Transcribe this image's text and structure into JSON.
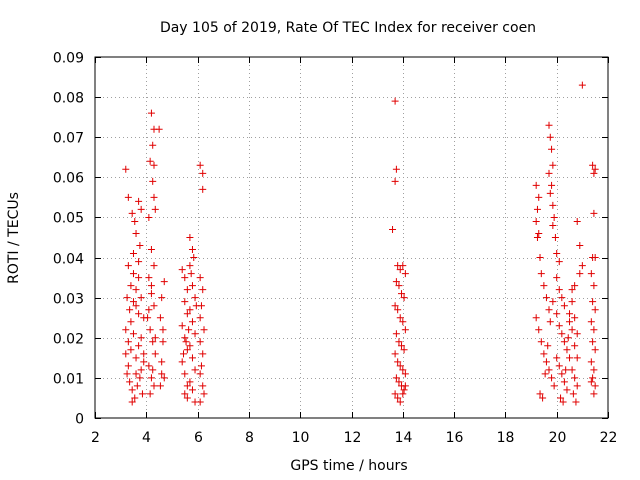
{
  "chart_data": {
    "type": "scatter",
    "title": "Day 105 of 2019, Rate Of TEC Index for receiver coen",
    "xlabel": "GPS time / hours",
    "ylabel": "ROTI / TECUs",
    "xlim": [
      2,
      22
    ],
    "ylim": [
      0,
      0.09
    ],
    "x_ticks": [
      2,
      4,
      6,
      8,
      10,
      12,
      14,
      16,
      18,
      20,
      22
    ],
    "x_tick_labels": [
      "2",
      "4",
      "6",
      "8",
      "10",
      "12",
      "14",
      "16",
      "18",
      "20",
      "22"
    ],
    "y_ticks": [
      0,
      0.01,
      0.02,
      0.03,
      0.04,
      0.05,
      0.06,
      0.07,
      0.08,
      0.09
    ],
    "y_tick_labels": [
      "0",
      "0.01",
      "0.02",
      "0.03",
      "0.04",
      "0.05",
      "0.06",
      "0.07",
      "0.08",
      "0.09"
    ],
    "grid": true,
    "marker": "+",
    "color": "#e00000",
    "series": [
      {
        "name": "ROTI",
        "points": [
          [
            3.2,
            0.062
          ],
          [
            3.3,
            0.055
          ],
          [
            3.45,
            0.051
          ],
          [
            3.55,
            0.049
          ],
          [
            3.6,
            0.046
          ],
          [
            3.7,
            0.054
          ],
          [
            3.8,
            0.052
          ],
          [
            3.75,
            0.043
          ],
          [
            3.5,
            0.041
          ],
          [
            3.3,
            0.038
          ],
          [
            3.25,
            0.03
          ],
          [
            3.35,
            0.027
          ],
          [
            3.4,
            0.033
          ],
          [
            3.5,
            0.036
          ],
          [
            3.6,
            0.028
          ],
          [
            3.7,
            0.035
          ],
          [
            3.8,
            0.03
          ],
          [
            3.9,
            0.025
          ],
          [
            3.2,
            0.022
          ],
          [
            3.3,
            0.019
          ],
          [
            3.4,
            0.017
          ],
          [
            3.5,
            0.021
          ],
          [
            3.6,
            0.015
          ],
          [
            3.7,
            0.018
          ],
          [
            3.8,
            0.012
          ],
          [
            3.9,
            0.016
          ],
          [
            3.25,
            0.011
          ],
          [
            3.35,
            0.009
          ],
          [
            3.45,
            0.007
          ],
          [
            3.55,
            0.005
          ],
          [
            3.65,
            0.008
          ],
          [
            3.75,
            0.01
          ],
          [
            3.85,
            0.006
          ],
          [
            3.3,
            0.013
          ],
          [
            3.4,
            0.024
          ],
          [
            3.5,
            0.029
          ],
          [
            3.6,
            0.032
          ],
          [
            3.7,
            0.026
          ],
          [
            3.8,
            0.02
          ],
          [
            3.9,
            0.014
          ],
          [
            3.45,
            0.004
          ],
          [
            3.6,
            0.011
          ],
          [
            3.2,
            0.016
          ],
          [
            3.7,
            0.039
          ],
          [
            4.1,
            0.05
          ],
          [
            4.2,
            0.042
          ],
          [
            4.3,
            0.038
          ],
          [
            4.1,
            0.035
          ],
          [
            4.2,
            0.031
          ],
          [
            4.3,
            0.028
          ],
          [
            4.05,
            0.025
          ],
          [
            4.15,
            0.022
          ],
          [
            4.25,
            0.019
          ],
          [
            4.35,
            0.016
          ],
          [
            4.1,
            0.013
          ],
          [
            4.2,
            0.01
          ],
          [
            4.3,
            0.008
          ],
          [
            4.15,
            0.006
          ],
          [
            4.25,
            0.012
          ],
          [
            4.35,
            0.02
          ],
          [
            4.1,
            0.027
          ],
          [
            4.2,
            0.033
          ],
          [
            4.2,
            0.076
          ],
          [
            4.3,
            0.072
          ],
          [
            4.25,
            0.068
          ],
          [
            4.15,
            0.064
          ],
          [
            4.3,
            0.063
          ],
          [
            4.25,
            0.059
          ],
          [
            4.3,
            0.055
          ],
          [
            4.35,
            0.052
          ],
          [
            4.5,
            0.072
          ],
          [
            4.6,
            0.03
          ],
          [
            4.55,
            0.025
          ],
          [
            4.65,
            0.019
          ],
          [
            4.6,
            0.014
          ],
          [
            4.7,
            0.01
          ],
          [
            4.55,
            0.008
          ],
          [
            4.65,
            0.022
          ],
          [
            4.7,
            0.034
          ],
          [
            4.6,
            0.011
          ],
          [
            5.4,
            0.037
          ],
          [
            5.5,
            0.035
          ],
          [
            5.6,
            0.032
          ],
          [
            5.7,
            0.045
          ],
          [
            5.8,
            0.042
          ],
          [
            5.5,
            0.029
          ],
          [
            5.6,
            0.026
          ],
          [
            5.7,
            0.038
          ],
          [
            5.8,
            0.033
          ],
          [
            5.9,
            0.03
          ],
          [
            5.4,
            0.023
          ],
          [
            5.5,
            0.02
          ],
          [
            5.6,
            0.017
          ],
          [
            5.7,
            0.027
          ],
          [
            5.8,
            0.024
          ],
          [
            5.9,
            0.021
          ],
          [
            5.4,
            0.014
          ],
          [
            5.5,
            0.011
          ],
          [
            5.6,
            0.008
          ],
          [
            5.7,
            0.018
          ],
          [
            5.8,
            0.015
          ],
          [
            5.9,
            0.012
          ],
          [
            5.5,
            0.006
          ],
          [
            5.6,
            0.005
          ],
          [
            5.7,
            0.009
          ],
          [
            5.8,
            0.007
          ],
          [
            5.9,
            0.004
          ],
          [
            5.45,
            0.016
          ],
          [
            5.55,
            0.019
          ],
          [
            5.65,
            0.022
          ],
          [
            5.75,
            0.036
          ],
          [
            5.85,
            0.04
          ],
          [
            5.95,
            0.028
          ],
          [
            6.1,
            0.063
          ],
          [
            6.2,
            0.061
          ],
          [
            6.2,
            0.057
          ],
          [
            6.1,
            0.035
          ],
          [
            6.2,
            0.032
          ],
          [
            6.15,
            0.028
          ],
          [
            6.1,
            0.025
          ],
          [
            6.25,
            0.022
          ],
          [
            6.1,
            0.019
          ],
          [
            6.2,
            0.016
          ],
          [
            6.15,
            0.013
          ],
          [
            6.1,
            0.011
          ],
          [
            6.2,
            0.008
          ],
          [
            6.25,
            0.006
          ],
          [
            6.1,
            0.004
          ],
          [
            13.7,
            0.079
          ],
          [
            13.75,
            0.062
          ],
          [
            13.7,
            0.059
          ],
          [
            13.6,
            0.047
          ],
          [
            13.8,
            0.038
          ],
          [
            13.9,
            0.037
          ],
          [
            14.0,
            0.038
          ],
          [
            14.1,
            0.036
          ],
          [
            13.75,
            0.034
          ],
          [
            13.85,
            0.033
          ],
          [
            13.95,
            0.031
          ],
          [
            14.05,
            0.03
          ],
          [
            13.7,
            0.028
          ],
          [
            13.8,
            0.027
          ],
          [
            13.9,
            0.025
          ],
          [
            14.0,
            0.024
          ],
          [
            14.1,
            0.022
          ],
          [
            13.75,
            0.021
          ],
          [
            13.85,
            0.019
          ],
          [
            13.95,
            0.018
          ],
          [
            14.05,
            0.017
          ],
          [
            13.7,
            0.016
          ],
          [
            13.8,
            0.014
          ],
          [
            13.9,
            0.013
          ],
          [
            14.0,
            0.012
          ],
          [
            14.1,
            0.011
          ],
          [
            13.75,
            0.01
          ],
          [
            13.85,
            0.009
          ],
          [
            13.95,
            0.008
          ],
          [
            14.05,
            0.007
          ],
          [
            13.7,
            0.006
          ],
          [
            13.8,
            0.005
          ],
          [
            13.9,
            0.004
          ],
          [
            14.0,
            0.006
          ],
          [
            14.1,
            0.008
          ],
          [
            19.2,
            0.058
          ],
          [
            19.3,
            0.055
          ],
          [
            19.25,
            0.052
          ],
          [
            19.2,
            0.049
          ],
          [
            19.3,
            0.046
          ],
          [
            19.25,
            0.045
          ],
          [
            19.35,
            0.04
          ],
          [
            19.4,
            0.036
          ],
          [
            19.5,
            0.033
          ],
          [
            19.6,
            0.03
          ],
          [
            19.7,
            0.027
          ],
          [
            19.2,
            0.025
          ],
          [
            19.3,
            0.022
          ],
          [
            19.4,
            0.019
          ],
          [
            19.5,
            0.016
          ],
          [
            19.6,
            0.014
          ],
          [
            19.7,
            0.012
          ],
          [
            19.8,
            0.01
          ],
          [
            19.9,
            0.008
          ],
          [
            19.35,
            0.006
          ],
          [
            19.45,
            0.005
          ],
          [
            19.55,
            0.011
          ],
          [
            19.65,
            0.018
          ],
          [
            19.75,
            0.024
          ],
          [
            19.85,
            0.029
          ],
          [
            19.7,
            0.073
          ],
          [
            19.75,
            0.07
          ],
          [
            19.8,
            0.067
          ],
          [
            19.85,
            0.063
          ],
          [
            19.7,
            0.061
          ],
          [
            19.8,
            0.058
          ],
          [
            19.75,
            0.056
          ],
          [
            19.85,
            0.053
          ],
          [
            19.9,
            0.05
          ],
          [
            19.85,
            0.048
          ],
          [
            19.95,
            0.045
          ],
          [
            20.0,
            0.041
          ],
          [
            20.1,
            0.039
          ],
          [
            20.0,
            0.035
          ],
          [
            20.1,
            0.032
          ],
          [
            20.2,
            0.03
          ],
          [
            20.3,
            0.028
          ],
          [
            20.0,
            0.026
          ],
          [
            20.1,
            0.023
          ],
          [
            20.2,
            0.021
          ],
          [
            20.3,
            0.019
          ],
          [
            20.4,
            0.017
          ],
          [
            20.0,
            0.015
          ],
          [
            20.1,
            0.013
          ],
          [
            20.2,
            0.011
          ],
          [
            20.3,
            0.009
          ],
          [
            20.4,
            0.007
          ],
          [
            20.15,
            0.005
          ],
          [
            20.25,
            0.004
          ],
          [
            20.35,
            0.012
          ],
          [
            20.45,
            0.02
          ],
          [
            20.5,
            0.026
          ],
          [
            20.6,
            0.032
          ],
          [
            20.7,
            0.033
          ],
          [
            20.6,
            0.029
          ],
          [
            20.5,
            0.024
          ],
          [
            20.6,
            0.022
          ],
          [
            20.7,
            0.018
          ],
          [
            20.5,
            0.015
          ],
          [
            20.6,
            0.012
          ],
          [
            20.7,
            0.01
          ],
          [
            20.8,
            0.008
          ],
          [
            20.65,
            0.006
          ],
          [
            20.75,
            0.004
          ],
          [
            20.8,
            0.015
          ],
          [
            20.7,
            0.025
          ],
          [
            20.8,
            0.021
          ],
          [
            20.8,
            0.049
          ],
          [
            20.9,
            0.043
          ],
          [
            21.0,
            0.038
          ],
          [
            20.9,
            0.036
          ],
          [
            21.0,
            0.083
          ],
          [
            21.4,
            0.063
          ],
          [
            21.5,
            0.062
          ],
          [
            21.45,
            0.061
          ],
          [
            21.45,
            0.051
          ],
          [
            21.4,
            0.04
          ],
          [
            21.5,
            0.04
          ],
          [
            21.35,
            0.036
          ],
          [
            21.45,
            0.033
          ],
          [
            21.4,
            0.029
          ],
          [
            21.5,
            0.027
          ],
          [
            21.35,
            0.024
          ],
          [
            21.45,
            0.022
          ],
          [
            21.4,
            0.019
          ],
          [
            21.5,
            0.017
          ],
          [
            21.35,
            0.014
          ],
          [
            21.45,
            0.012
          ],
          [
            21.4,
            0.01
          ],
          [
            21.5,
            0.008
          ],
          [
            21.45,
            0.006
          ],
          [
            21.35,
            0.009
          ]
        ]
      }
    ]
  }
}
